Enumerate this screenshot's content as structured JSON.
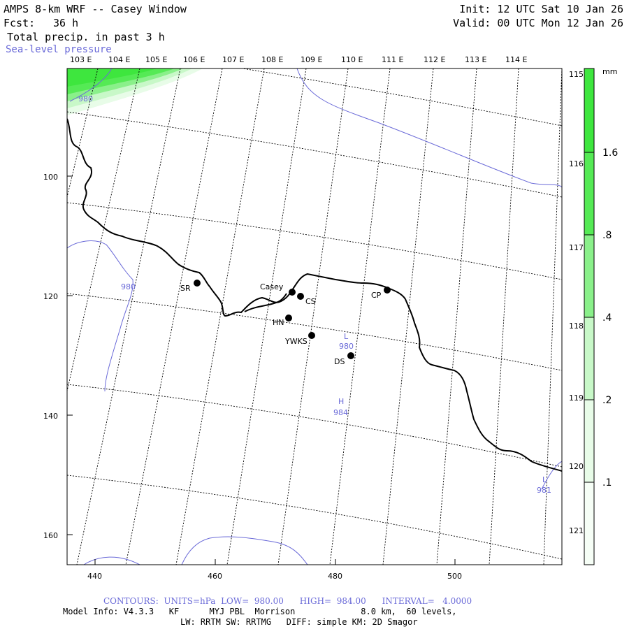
{
  "header": {
    "title": "AMPS 8-km WRF -- Casey Window",
    "fcst_label": "Fcst:",
    "fcst_value": "36 h",
    "init": "Init: 12 UTC Sat 10 Jan 26",
    "valid": "Valid: 00 UTC Mon 12 Jan 26",
    "field": "Total precip. in past 3 h",
    "overlay": "Sea-level pressure"
  },
  "axes": {
    "lon_top": [
      "103 E",
      "104 E",
      "105 E",
      "106 E",
      "107 E",
      "108 E",
      "109 E",
      "110 E",
      "111 E",
      "112 E",
      "113 E",
      "114 E"
    ],
    "lon_right": [
      "115 E",
      "116 E",
      "117 E",
      "118 E",
      "119 E",
      "120 E",
      "121 E"
    ],
    "x_ticks": [
      "440",
      "460",
      "480",
      "500"
    ],
    "y_ticks": [
      "100",
      "120",
      "140",
      "160"
    ]
  },
  "colorbar": {
    "unit": "mm",
    "labels": [
      "1.6",
      ".8",
      ".4",
      ".2",
      ".1"
    ],
    "colors": [
      "#3ee63e",
      "#55ea55",
      "#8af08a",
      "#c8f8c8",
      "#e8fce8",
      "#f6fef6"
    ]
  },
  "stations": [
    {
      "label": "Casey"
    },
    {
      "label": "CS"
    },
    {
      "label": "SR"
    },
    {
      "label": "HN"
    },
    {
      "label": "YWKS"
    },
    {
      "label": "CP"
    },
    {
      "label": "DS"
    }
  ],
  "pressure_labels": {
    "l980_topleft": "980",
    "l980_left": "980",
    "low_center_L": "L",
    "low_center_val": "980",
    "high_center_H": "H",
    "high_center_val": "984",
    "low_right_L": "L",
    "low_right_val": "981"
  },
  "footer": {
    "contours": "CONTOURS:  UNITS=hPa  LOW=  980.00      HIGH=  984.00      INTERVAL=   4.0000",
    "model_info": "Model Info: V4.3.3   KF      MYJ PBL  Morrison             8.0 km,  60 levels,",
    "physics": "LW: RRTM SW: RRTMG   DIFF: simple KM: 2D Smagor"
  }
}
